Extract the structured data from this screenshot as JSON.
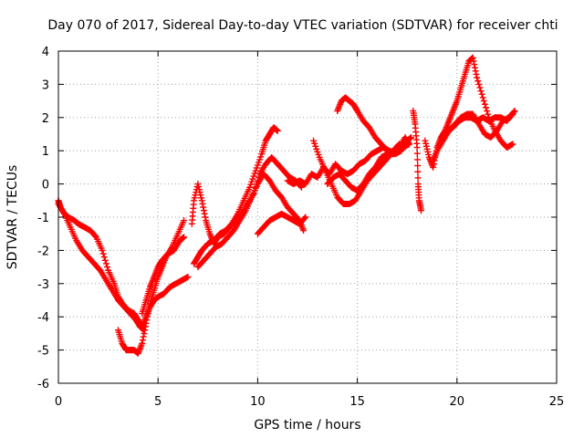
{
  "chart_data": {
    "type": "scatter",
    "title": "Day 070 of 2017, Sidereal Day-to-day VTEC variation (SDTVAR) for receiver chti",
    "xlabel": "GPS time / hours",
    "ylabel": "SDTVAR / TECUs",
    "xlim": [
      0,
      25
    ],
    "ylim": [
      -6,
      4
    ],
    "xticks": [
      0,
      5,
      10,
      15,
      20,
      25
    ],
    "yticks": [
      -6,
      -5,
      -4,
      -3,
      -2,
      -1,
      0,
      1,
      2,
      3,
      4
    ],
    "grid": true,
    "marker": "+",
    "color": "#ff0000",
    "series": [
      {
        "name": "",
        "x": [
          0.0,
          0.1,
          0.3,
          0.5,
          0.8,
          1.0,
          1.3,
          1.6,
          1.9,
          2.2,
          2.5,
          2.8,
          3.0,
          3.2,
          3.5,
          3.8,
          4.0,
          4.2,
          4.4,
          4.6,
          4.8,
          5.0,
          5.3,
          5.6,
          5.9,
          6.2,
          6.5
        ],
        "y": [
          -0.5,
          -0.7,
          -0.9,
          -1.0,
          -1.1,
          -1.2,
          -1.3,
          -1.4,
          -1.6,
          -2.0,
          -2.6,
          -3.0,
          -3.4,
          -3.6,
          -3.8,
          -3.9,
          -4.1,
          -4.3,
          -4.0,
          -3.7,
          -3.5,
          -3.4,
          -3.3,
          -3.1,
          -3.0,
          -2.9,
          -2.8
        ]
      },
      {
        "name": "",
        "x": [
          0.0,
          0.3,
          0.6,
          0.9,
          1.2,
          1.5,
          1.8,
          2.1,
          2.4,
          2.7,
          3.0,
          3.3,
          3.6,
          3.9,
          4.1,
          4.3
        ],
        "y": [
          -0.6,
          -0.9,
          -1.3,
          -1.7,
          -2.0,
          -2.2,
          -2.4,
          -2.6,
          -2.9,
          -3.2,
          -3.5,
          -3.7,
          -3.9,
          -4.1,
          -4.3,
          -4.4
        ]
      },
      {
        "name": "",
        "x": [
          3.0,
          3.2,
          3.4,
          3.6,
          3.8,
          4.0,
          4.2,
          4.4,
          4.6,
          4.8,
          5.0,
          5.2,
          5.4,
          5.7,
          6.0,
          6.3
        ],
        "y": [
          -4.4,
          -4.8,
          -5.0,
          -5.0,
          -5.0,
          -5.1,
          -4.8,
          -4.2,
          -3.6,
          -3.2,
          -2.8,
          -2.5,
          -2.2,
          -1.9,
          -1.5,
          -1.1
        ]
      },
      {
        "name": "",
        "x": [
          4.2,
          4.4,
          4.6,
          4.8,
          5.0,
          5.2,
          5.5,
          5.8,
          6.1,
          6.3
        ],
        "y": [
          -3.9,
          -3.5,
          -3.1,
          -2.8,
          -2.5,
          -2.3,
          -2.1,
          -2.0,
          -1.7,
          -1.6
        ]
      },
      {
        "name": "",
        "x": [
          6.7,
          6.8,
          7.0,
          7.2,
          7.4,
          7.6,
          7.8,
          8.0,
          8.3,
          8.6,
          8.9,
          9.2,
          9.5,
          9.8,
          10.1,
          10.4,
          10.7,
          11.0,
          11.3,
          11.6,
          11.9,
          12.2
        ],
        "y": [
          -1.2,
          -0.5,
          0.0,
          -0.5,
          -1.1,
          -1.5,
          -1.8,
          -1.6,
          -1.5,
          -1.3,
          -1.1,
          -0.9,
          -0.6,
          -0.3,
          0.3,
          0.6,
          0.8,
          0.6,
          0.4,
          0.2,
          0.1,
          -0.1
        ]
      },
      {
        "name": "",
        "x": [
          6.8,
          7.0,
          7.2,
          7.5,
          7.8,
          8.1,
          8.4,
          8.7,
          9.0,
          9.3,
          9.6,
          9.9,
          10.2,
          10.4,
          10.6,
          10.8,
          11.0
        ],
        "y": [
          -2.4,
          -2.2,
          -2.0,
          -1.8,
          -1.7,
          -1.5,
          -1.4,
          -1.2,
          -0.9,
          -0.5,
          -0.1,
          0.4,
          0.9,
          1.3,
          1.5,
          1.7,
          1.6
        ]
      },
      {
        "name": "",
        "x": [
          7.0,
          7.3,
          7.6,
          7.9,
          8.2,
          8.5,
          8.8,
          9.1,
          9.4,
          9.7,
          10.0,
          10.3,
          10.6,
          10.9,
          11.2,
          11.5,
          11.8,
          12.1,
          12.3
        ],
        "y": [
          -2.5,
          -2.3,
          -2.1,
          -1.9,
          -1.8,
          -1.6,
          -1.4,
          -1.1,
          -0.8,
          -0.4,
          0.0,
          0.3,
          0.1,
          -0.2,
          -0.4,
          -0.7,
          -0.9,
          -1.1,
          -1.4
        ]
      },
      {
        "name": "",
        "x": [
          10.0,
          10.3,
          10.6,
          10.9,
          11.2,
          11.5,
          11.8,
          12.1,
          12.4
        ],
        "y": [
          -1.5,
          -1.3,
          -1.1,
          -1.0,
          -0.9,
          -1.0,
          -1.1,
          -1.2,
          -1.0
        ]
      },
      {
        "name": "",
        "x": [
          11.5,
          11.8,
          12.1,
          12.4,
          12.7,
          13.0,
          13.3,
          13.6,
          13.9,
          14.2,
          14.5,
          14.8,
          15.1,
          15.4,
          15.7,
          16.0,
          16.3,
          16.6,
          16.9,
          17.2,
          17.5,
          17.7
        ],
        "y": [
          0.1,
          0.0,
          0.1,
          0.0,
          0.3,
          0.2,
          0.5,
          0.3,
          0.6,
          0.4,
          0.3,
          0.4,
          0.6,
          0.7,
          0.9,
          1.0,
          1.1,
          1.0,
          0.9,
          1.0,
          1.3,
          1.4
        ]
      },
      {
        "name": "",
        "x": [
          12.8,
          13.1,
          13.4,
          13.7,
          14.0,
          14.3,
          14.6,
          14.9,
          15.2,
          15.5,
          15.8,
          16.1,
          16.4,
          16.7,
          17.0,
          17.3,
          17.6
        ],
        "y": [
          1.3,
          0.8,
          0.4,
          0.0,
          -0.4,
          -0.6,
          -0.6,
          -0.5,
          -0.2,
          0.1,
          0.3,
          0.5,
          0.7,
          0.9,
          1.0,
          1.1,
          1.2
        ]
      },
      {
        "name": "",
        "x": [
          14.0,
          14.2,
          14.4,
          14.6,
          14.8,
          15.0,
          15.3,
          15.6,
          15.9,
          16.2,
          16.5,
          16.8,
          17.1,
          17.4,
          17.6
        ],
        "y": [
          2.2,
          2.5,
          2.6,
          2.5,
          2.4,
          2.2,
          1.9,
          1.7,
          1.4,
          1.2,
          1.0,
          0.9,
          1.1,
          1.4,
          1.2
        ]
      },
      {
        "name": "",
        "x": [
          13.5,
          13.8,
          14.1,
          14.4,
          14.7,
          15.0,
          15.3,
          15.6,
          15.9,
          16.2,
          16.5,
          16.8,
          17.1
        ],
        "y": [
          0.0,
          0.2,
          0.3,
          0.1,
          -0.1,
          -0.2,
          0.0,
          0.3,
          0.5,
          0.8,
          0.9,
          1.0,
          1.2
        ]
      },
      {
        "name": "",
        "x": [
          17.8,
          17.9,
          18.0,
          18.05,
          18.1,
          18.2
        ],
        "y": [
          2.2,
          1.8,
          1.1,
          0.0,
          -0.5,
          -0.8
        ]
      },
      {
        "name": "",
        "x": [
          18.4,
          18.6,
          18.8,
          19.0,
          19.2,
          19.4,
          19.6,
          19.8,
          20.0,
          20.2,
          20.4,
          20.6,
          20.8,
          21.0,
          21.3,
          21.6,
          21.9,
          22.2,
          22.5,
          22.8
        ],
        "y": [
          1.3,
          0.8,
          0.5,
          1.1,
          1.4,
          1.6,
          1.9,
          2.2,
          2.5,
          2.9,
          3.3,
          3.7,
          3.8,
          3.2,
          2.6,
          2.0,
          1.6,
          1.3,
          1.1,
          1.2
        ]
      },
      {
        "name": "",
        "x": [
          18.8,
          19.0,
          19.3,
          19.6,
          19.9,
          20.2,
          20.5,
          20.8,
          21.1,
          21.4,
          21.7,
          22.0,
          22.3,
          22.6,
          22.9
        ],
        "y": [
          0.7,
          1.0,
          1.3,
          1.6,
          1.8,
          2.0,
          2.1,
          2.1,
          1.8,
          1.5,
          1.4,
          1.6,
          1.9,
          2.0,
          2.2
        ]
      },
      {
        "name": "",
        "x": [
          19.2,
          19.5,
          19.8,
          20.1,
          20.4,
          20.7,
          21.0,
          21.3,
          21.6,
          21.9,
          22.2,
          22.5,
          22.8
        ],
        "y": [
          1.4,
          1.6,
          1.7,
          1.9,
          2.0,
          2.0,
          1.9,
          2.0,
          1.9,
          2.0,
          2.0,
          1.9,
          2.1
        ]
      }
    ]
  }
}
